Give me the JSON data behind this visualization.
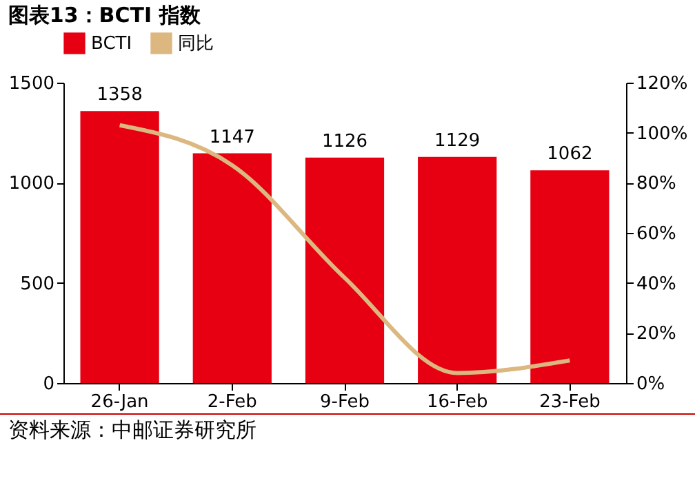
{
  "chart_data": {
    "type": "bar",
    "title": "图表13：BCTI 指数",
    "categories": [
      "26-Jan",
      "2-Feb",
      "9-Feb",
      "16-Feb",
      "23-Feb"
    ],
    "series": [
      {
        "name": "BCTI",
        "color": "#e60012",
        "values": [
          1358,
          1147,
          1126,
          1129,
          1062
        ],
        "value_labels": [
          "1358",
          "1147",
          "1126",
          "1129",
          "1062"
        ]
      },
      {
        "name": "同比",
        "type": "line",
        "axis": "y2",
        "color": "#dcb77f",
        "values": [
          103,
          87,
          42,
          4,
          9
        ]
      }
    ],
    "ylim": [
      0,
      1500
    ],
    "yticks": [
      0,
      500,
      1000,
      1500
    ],
    "y2lim": [
      0,
      120
    ],
    "y2ticks": [
      {
        "value": 0,
        "label": "0%"
      },
      {
        "value": 20,
        "label": "20%"
      },
      {
        "value": 40,
        "label": "40%"
      },
      {
        "value": 60,
        "label": "60%"
      },
      {
        "value": 80,
        "label": "80%"
      },
      {
        "value": 100,
        "label": "100%"
      },
      {
        "value": 120,
        "label": "120%"
      }
    ],
    "legend": "top",
    "grid": false,
    "annotations": [
      "资料来源：中邮证券研究所"
    ]
  }
}
